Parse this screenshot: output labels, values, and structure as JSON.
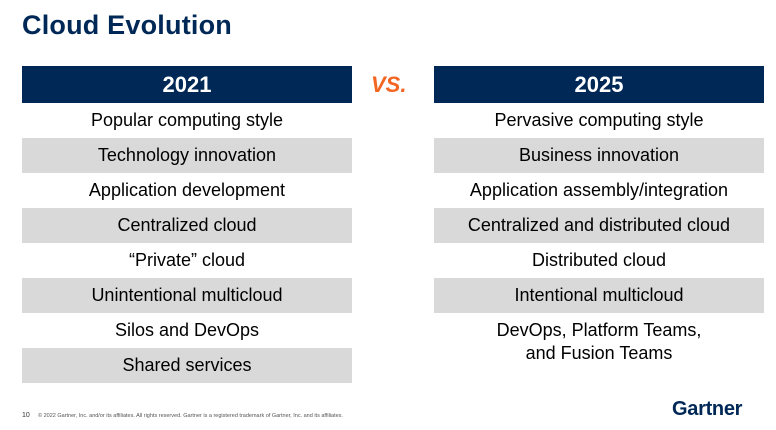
{
  "title": "Cloud Evolution",
  "vs_label": "VS.",
  "left": {
    "header": "2021",
    "rows": [
      "Popular computing style",
      "Technology innovation",
      "Application development",
      "Centralized cloud",
      "“Private” cloud",
      "Unintentional multicloud",
      "Silos and DevOps",
      "Shared services"
    ]
  },
  "right": {
    "header": "2025",
    "rows": [
      "Pervasive computing style",
      "Business innovation",
      "Application assembly/integration",
      "Centralized and distributed cloud",
      "Distributed cloud",
      "Intentional multicloud"
    ],
    "last_row_line1": "DevOps, Platform Teams,",
    "last_row_line2": "and Fusion Teams"
  },
  "footer": {
    "page_number": "10",
    "copyright": "© 2022 Gartner, Inc. and/or its affiliates. All rights reserved. Gartner is a registered trademark of Gartner, Inc. and its affiliates.",
    "logo": "Gartner"
  },
  "colors": {
    "navy": "#002856",
    "orange": "#f26522",
    "row_shade": "#d9d9d9"
  }
}
